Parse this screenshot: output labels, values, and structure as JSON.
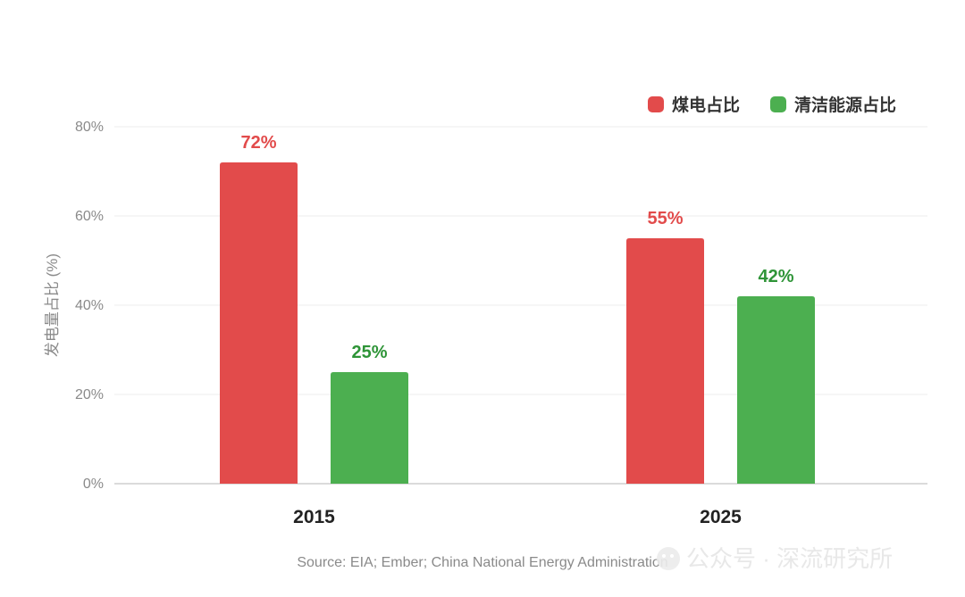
{
  "chart_data": {
    "type": "bar",
    "categories": [
      "2015",
      "2025"
    ],
    "series": [
      {
        "name": "煤电占比",
        "values": [
          72,
          55
        ],
        "color": "#e24b4b"
      },
      {
        "name": "清洁能源占比",
        "values": [
          25,
          42
        ],
        "color": "#4caf50"
      }
    ],
    "value_label_colors": [
      "#e24b4b",
      "#2e9437"
    ],
    "ylabel": "发电量占比 (%)",
    "ylim": [
      0,
      80
    ],
    "yticks": [
      0,
      20,
      40,
      60,
      80
    ],
    "ytick_suffix": "%",
    "grid": true,
    "legend_position": "top-right",
    "source": "Source: EIA; Ember; China National Energy Administration"
  },
  "watermark": {
    "icon": "wechat-icon",
    "text": "公众号 · 深流研究所"
  }
}
